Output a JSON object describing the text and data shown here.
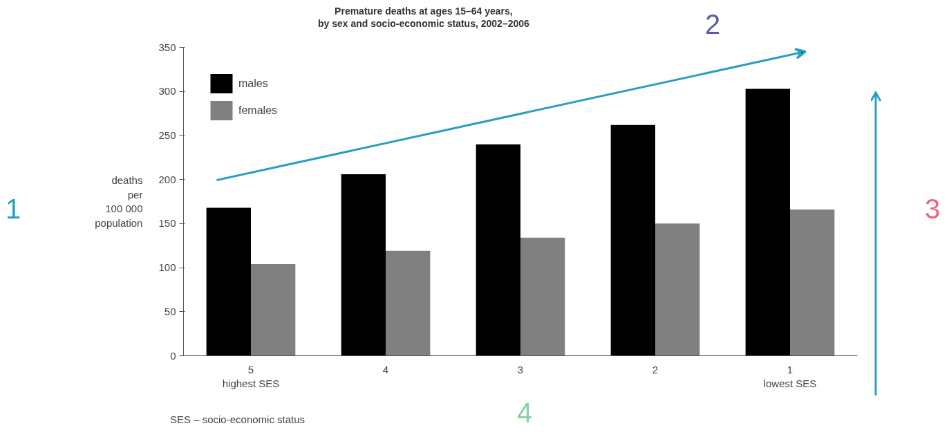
{
  "chart_data": {
    "type": "bar",
    "title": "Premature deaths at ages 15–64 years,\nby sex and socio-economic status, 2002–2006",
    "ylabel": "deaths\nper\n100 000\npopulation",
    "categories": [
      "5\nhighest SES",
      "4",
      "3",
      "2",
      "1\nlowest SES"
    ],
    "series": [
      {
        "name": "males",
        "color": "#000000",
        "values": [
          168,
          206,
          240,
          262,
          303
        ]
      },
      {
        "name": "females",
        "color": "#808080",
        "values": [
          104,
          119,
          134,
          150,
          166
        ]
      }
    ],
    "ylim": [
      0,
      350
    ],
    "yticks": [
      0,
      50,
      100,
      150,
      200,
      250,
      300,
      350
    ],
    "grid": false,
    "legend": "top left",
    "annotations": [
      "SES – socio-economic status",
      "1",
      "2",
      "3",
      "4"
    ]
  }
}
